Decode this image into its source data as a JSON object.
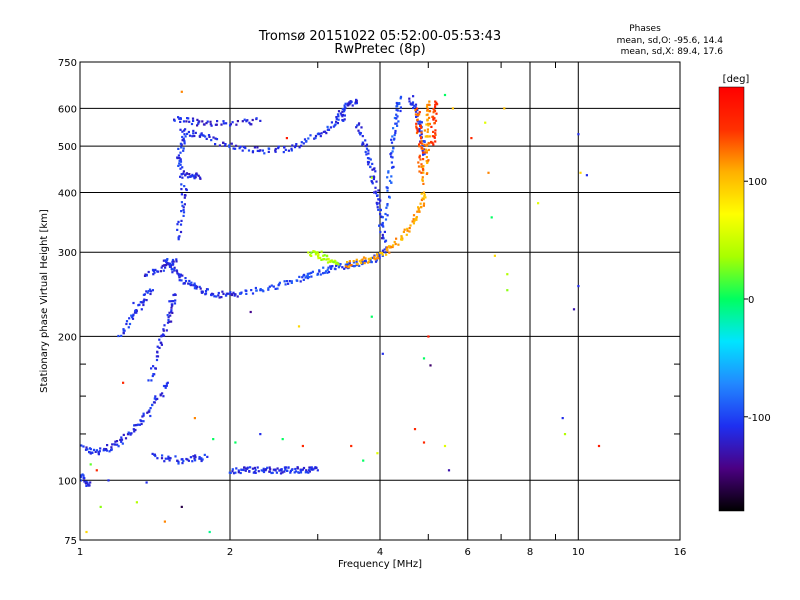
{
  "chart_data": {
    "type": "scatter",
    "title": "Tromsø 20151022 05:52:00-05:53:43",
    "subtitle": "RwPretec (8p)",
    "xlabel": "Frequency [MHz]",
    "ylabel": "Stationary phase Virtual Height [km]",
    "x_scale": "log",
    "y_scale": "log",
    "xlim": [
      1,
      16
    ],
    "ylim": [
      75,
      750
    ],
    "x_ticks": [
      1,
      2,
      4,
      6,
      8,
      10,
      16
    ],
    "x_minor_ticks": [
      3,
      5,
      7,
      9
    ],
    "y_ticks": [
      75,
      100,
      200,
      300,
      400,
      500,
      600,
      750
    ],
    "y_minor_ticks": [
      125,
      150,
      175
    ],
    "grid": true,
    "colorbar": {
      "label": "[deg]",
      "range": [
        -180,
        180
      ],
      "ticks": [
        100,
        0,
        -100
      ],
      "colors": [
        "#000000",
        "#4b0082",
        "#1e2ff0",
        "#2288ff",
        "#00e5ff",
        "#00ff60",
        "#a8ff00",
        "#ffff00",
        "#ffb000",
        "#ff3000",
        "#ff0000"
      ]
    },
    "stats": {
      "heading": "Phases",
      "line_o": "mean, sd,O: -95.6, 14.4",
      "line_x": "mean, sd,X:  89.4, 17.6"
    },
    "series": [
      {
        "traces": [
          {
            "x": [
              1.0,
              1.05,
              1.1,
              1.15,
              1.2,
              1.26,
              1.32,
              1.38,
              1.44,
              1.5
            ],
            "y": [
              118,
              115,
              115,
              117,
              120,
              125,
              132,
              140,
              150,
              160
            ],
            "phase": -110
          },
          {
            "x": [
              1.0,
              1.02,
              1.04
            ],
            "y": [
              102,
              100,
              98
            ],
            "phase": -110
          },
          {
            "x": [
              1.2,
              1.25,
              1.3,
              1.35,
              1.4
            ],
            "y": [
              200,
              215,
              228,
              240,
              250
            ],
            "phase": -105
          },
          {
            "x": [
              1.38,
              1.42,
              1.46,
              1.5,
              1.52,
              1.55
            ],
            "y": [
              160,
              180,
              200,
              215,
              230,
              245
            ],
            "phase": -112
          },
          {
            "x": [
              1.48,
              1.52,
              1.56,
              1.6,
              1.66,
              1.72,
              1.8,
              1.9,
              2.0,
              2.1
            ],
            "y": [
              290,
              280,
              272,
              265,
              258,
              252,
              248,
              245,
              244,
              246
            ],
            "phase": -110
          },
          {
            "x": [
              1.35,
              1.42,
              1.5,
              1.56
            ],
            "y": [
              270,
              275,
              282,
              290
            ],
            "phase": -110
          },
          {
            "x": [
              1.56,
              1.6,
              1.62,
              1.6,
              1.58,
              1.6,
              1.62
            ],
            "y": [
              320,
              360,
              400,
              440,
              470,
              500,
              530
            ],
            "phase": -108
          },
          {
            "x": [
              1.6,
              1.7,
              1.8,
              1.95,
              2.1,
              2.3,
              2.5,
              2.7
            ],
            "y": [
              540,
              530,
              520,
              505,
              495,
              490,
              492,
              498
            ],
            "phase": -110
          },
          {
            "x": [
              1.55,
              1.65,
              1.75,
              1.9,
              2.1,
              2.3
            ],
            "y": [
              570,
              565,
              560,
              560,
              560,
              565
            ],
            "phase": -115
          },
          {
            "x": [
              1.62,
              1.68,
              1.74
            ],
            "y": [
              440,
              435,
              430
            ],
            "phase": -115
          },
          {
            "x": [
              2.1,
              2.3,
              2.5,
              2.7,
              2.85,
              3.0,
              3.15,
              3.3,
              3.45,
              3.6,
              3.75,
              3.9,
              4.05
            ],
            "y": [
              246,
              250,
              255,
              262,
              268,
              273,
              277,
              280,
              282,
              283,
              286,
              290,
              295
            ],
            "phase": -100
          },
          {
            "x": [
              2.7,
              2.9,
              3.1,
              3.25,
              3.4
            ],
            "y": [
              500,
              520,
              540,
              560,
              580
            ],
            "phase": -105
          },
          {
            "x": [
              3.3,
              3.4,
              3.5,
              3.58
            ],
            "y": [
              580,
              600,
              615,
              625
            ],
            "phase": -112
          },
          {
            "x": [
              3.6,
              3.7,
              3.8,
              3.85,
              3.9,
              3.95,
              4.0,
              4.05,
              4.1
            ],
            "y": [
              560,
              520,
              480,
              450,
              420,
              390,
              360,
              330,
              300
            ],
            "phase": -110
          },
          {
            "x": [
              4.05,
              4.15,
              4.2,
              4.25,
              4.3,
              4.35,
              4.4
            ],
            "y": [
              340,
              400,
              450,
              500,
              550,
              600,
              630
            ],
            "phase": -95
          },
          {
            "x": [
              4.6,
              4.7,
              4.8,
              4.85,
              4.88
            ],
            "y": [
              630,
              600,
              560,
              520,
              480
            ],
            "phase": -108
          },
          {
            "x": [
              2.9,
              3.0,
              3.1,
              3.2,
              3.3
            ],
            "y": [
              300,
              298,
              292,
              287,
              283
            ],
            "phase": 40
          },
          {
            "x": [
              3.4,
              3.6,
              3.8,
              4.0,
              4.2,
              4.4,
              4.6,
              4.75,
              4.85,
              4.9
            ],
            "y": [
              283,
              286,
              290,
              296,
              305,
              320,
              340,
              360,
              380,
              400
            ],
            "phase": 110
          },
          {
            "x": [
              4.92,
              4.94,
              4.96,
              4.98,
              5.0,
              5.02
            ],
            "y": [
              420,
              460,
              500,
              540,
              580,
              620
            ],
            "phase": 115
          },
          {
            "x": [
              4.75,
              4.78,
              4.8,
              4.82,
              4.84
            ],
            "y": [
              600,
              560,
              520,
              480,
              440
            ],
            "phase": 135
          },
          {
            "x": [
              5.1,
              5.12,
              5.14,
              5.16
            ],
            "y": [
              500,
              540,
              580,
              620
            ],
            "phase": 145
          },
          {
            "x": [
              1.4,
              1.5,
              1.6,
              1.7,
              1.8
            ],
            "y": [
              112,
              111,
              110,
              111,
              112
            ],
            "phase": -110
          },
          {
            "x": [
              2.0,
              2.1,
              2.2,
              2.3,
              2.4,
              2.5,
              2.6,
              2.7,
              2.8,
              2.9,
              3.0
            ],
            "y": [
              105,
              105,
              105,
              105,
              105,
              105,
              105,
              105,
              105,
              105,
              105
            ],
            "phase": -110
          }
        ],
        "points": [
          {
            "x": 1.28,
            "y": 235,
            "phase": -110
          },
          {
            "x": 1.33,
            "y": 228,
            "phase": -110
          },
          {
            "x": 1.22,
            "y": 160,
            "phase": 150
          },
          {
            "x": 1.6,
            "y": 650,
            "phase": 120
          },
          {
            "x": 1.05,
            "y": 108,
            "phase": 20
          },
          {
            "x": 1.08,
            "y": 105,
            "phase": 150
          },
          {
            "x": 1.14,
            "y": 100,
            "phase": -110
          },
          {
            "x": 1.36,
            "y": 99,
            "phase": -110
          },
          {
            "x": 1.1,
            "y": 88,
            "phase": 30
          },
          {
            "x": 1.3,
            "y": 90,
            "phase": 40
          },
          {
            "x": 1.48,
            "y": 82,
            "phase": 120
          },
          {
            "x": 1.6,
            "y": 88,
            "phase": -160
          },
          {
            "x": 1.82,
            "y": 78,
            "phase": -10
          },
          {
            "x": 1.03,
            "y": 78,
            "phase": 90
          },
          {
            "x": 1.7,
            "y": 135,
            "phase": 120
          },
          {
            "x": 1.85,
            "y": 122,
            "phase": 0
          },
          {
            "x": 2.05,
            "y": 120,
            "phase": 0
          },
          {
            "x": 2.3,
            "y": 125,
            "phase": -110
          },
          {
            "x": 2.55,
            "y": 122,
            "phase": 0
          },
          {
            "x": 2.8,
            "y": 118,
            "phase": 150
          },
          {
            "x": 3.5,
            "y": 118,
            "phase": 150
          },
          {
            "x": 3.95,
            "y": 114,
            "phase": 60
          },
          {
            "x": 3.7,
            "y": 110,
            "phase": 0
          },
          {
            "x": 4.7,
            "y": 128,
            "phase": 150
          },
          {
            "x": 5.4,
            "y": 118,
            "phase": 60
          },
          {
            "x": 5.5,
            "y": 105,
            "phase": -130
          },
          {
            "x": 4.9,
            "y": 120,
            "phase": 150
          },
          {
            "x": 9.4,
            "y": 125,
            "phase": 40
          },
          {
            "x": 9.3,
            "y": 135,
            "phase": -110
          },
          {
            "x": 11.0,
            "y": 118,
            "phase": 160
          },
          {
            "x": 5.0,
            "y": 200,
            "phase": 160
          },
          {
            "x": 4.9,
            "y": 180,
            "phase": 0
          },
          {
            "x": 5.05,
            "y": 174,
            "phase": -150
          },
          {
            "x": 4.05,
            "y": 184,
            "phase": -110
          },
          {
            "x": 3.85,
            "y": 220,
            "phase": 0
          },
          {
            "x": 2.75,
            "y": 210,
            "phase": 90
          },
          {
            "x": 2.2,
            "y": 225,
            "phase": -140
          },
          {
            "x": 2.3,
            "y": 250,
            "phase": -100
          },
          {
            "x": 5.4,
            "y": 640,
            "phase": 0
          },
          {
            "x": 5.6,
            "y": 600,
            "phase": 100
          },
          {
            "x": 6.1,
            "y": 520,
            "phase": 150
          },
          {
            "x": 6.5,
            "y": 560,
            "phase": 60
          },
          {
            "x": 6.6,
            "y": 440,
            "phase": 120
          },
          {
            "x": 7.1,
            "y": 600,
            "phase": 100
          },
          {
            "x": 6.8,
            "y": 295,
            "phase": 90
          },
          {
            "x": 7.2,
            "y": 270,
            "phase": 40
          },
          {
            "x": 6.7,
            "y": 355,
            "phase": 0
          },
          {
            "x": 8.3,
            "y": 380,
            "phase": 60
          },
          {
            "x": 10.0,
            "y": 530,
            "phase": -110
          },
          {
            "x": 10.1,
            "y": 440,
            "phase": 90
          },
          {
            "x": 10.4,
            "y": 435,
            "phase": -110
          },
          {
            "x": 10.0,
            "y": 255,
            "phase": -110
          },
          {
            "x": 9.8,
            "y": 228,
            "phase": -130
          },
          {
            "x": 7.2,
            "y": 250,
            "phase": 30
          },
          {
            "x": 2.6,
            "y": 520,
            "phase": 160
          },
          {
            "x": 3.85,
            "y": 430,
            "phase": 40
          }
        ]
      }
    ]
  }
}
